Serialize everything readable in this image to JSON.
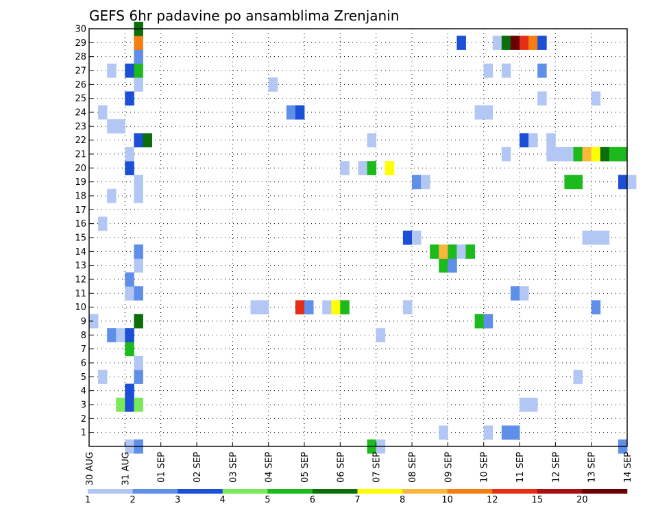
{
  "chart_data": {
    "type": "heatmap",
    "title": "GEFS 6hr padavine po ansamblima Zrenjanin",
    "x_tick_labels": [
      "30 AUG",
      "31 AUG",
      "01 SEP",
      "02 SEP",
      "03 SEP",
      "04 SEP",
      "05 SEP",
      "06 SEP",
      "07 SEP",
      "08 SEP",
      "09 SEP",
      "10 SEP",
      "11 SEP",
      "12 SEP",
      "13 SEP",
      "14 SEP"
    ],
    "x_range_steps": [
      0,
      60
    ],
    "y_ticks": [
      1,
      2,
      3,
      4,
      5,
      6,
      7,
      8,
      9,
      10,
      11,
      12,
      13,
      14,
      15,
      16,
      17,
      18,
      19,
      20,
      21,
      22,
      23,
      24,
      25,
      26,
      27,
      28,
      29,
      30
    ],
    "y_range": [
      0,
      30
    ],
    "grid": true,
    "legend_placement": "bottom",
    "legend_labels": [
      "1",
      "2",
      "3",
      "4",
      "5",
      "6",
      "7",
      "8",
      "10",
      "12",
      "15",
      "20"
    ],
    "legend_colors": [
      "#b3c7f5",
      "#5f8fe8",
      "#1a4fd6",
      "#7be85a",
      "#1dba1d",
      "#0b6e0b",
      "#ffff00",
      "#f9b83c",
      "#f57d12",
      "#e62d15",
      "#a51010",
      "#6b0000"
    ],
    "cells": [
      [
        4,
        0,
        1
      ],
      [
        5,
        0,
        2
      ],
      [
        31,
        0,
        5
      ],
      [
        32,
        0,
        1
      ],
      [
        59,
        0,
        2
      ],
      [
        39,
        1,
        1
      ],
      [
        44,
        1,
        1
      ],
      [
        46,
        1,
        2
      ],
      [
        47,
        1,
        2
      ],
      [
        3,
        3,
        4
      ],
      [
        4,
        3,
        3
      ],
      [
        5,
        3,
        4
      ],
      [
        48,
        3,
        1
      ],
      [
        49,
        3,
        1
      ],
      [
        4,
        4,
        3
      ],
      [
        1,
        5,
        1
      ],
      [
        5,
        5,
        2
      ],
      [
        54,
        5,
        1
      ],
      [
        5,
        6,
        1
      ],
      [
        4,
        7,
        5
      ],
      [
        2,
        8,
        2
      ],
      [
        3,
        8,
        1
      ],
      [
        4,
        8,
        3
      ],
      [
        32,
        8,
        1
      ],
      [
        0,
        9,
        1
      ],
      [
        5,
        9,
        6
      ],
      [
        43,
        9,
        5
      ],
      [
        44,
        9,
        2
      ],
      [
        18,
        10,
        1
      ],
      [
        19,
        10,
        1
      ],
      [
        23,
        10,
        10
      ],
      [
        24,
        10,
        2
      ],
      [
        26,
        10,
        1
      ],
      [
        27,
        10,
        7
      ],
      [
        28,
        10,
        5
      ],
      [
        35,
        10,
        1
      ],
      [
        56,
        10,
        2
      ],
      [
        4,
        11,
        1
      ],
      [
        5,
        11,
        2
      ],
      [
        47,
        11,
        2
      ],
      [
        48,
        11,
        1
      ],
      [
        4,
        12,
        2
      ],
      [
        5,
        13,
        1
      ],
      [
        39,
        13,
        5
      ],
      [
        40,
        13,
        2
      ],
      [
        5,
        14,
        2
      ],
      [
        38,
        14,
        5
      ],
      [
        39,
        14,
        8
      ],
      [
        40,
        14,
        5
      ],
      [
        41,
        14,
        1
      ],
      [
        42,
        14,
        5
      ],
      [
        35,
        15,
        3
      ],
      [
        36,
        15,
        1
      ],
      [
        55,
        15,
        1
      ],
      [
        56,
        15,
        1
      ],
      [
        57,
        15,
        1
      ],
      [
        1,
        16,
        1
      ],
      [
        2,
        18,
        1
      ],
      [
        5,
        18,
        1
      ],
      [
        5,
        19,
        1
      ],
      [
        36,
        19,
        2
      ],
      [
        37,
        19,
        1
      ],
      [
        53,
        19,
        5
      ],
      [
        54,
        19,
        5
      ],
      [
        59,
        19,
        3
      ],
      [
        60,
        19,
        1
      ],
      [
        4,
        20,
        3
      ],
      [
        28,
        20,
        1
      ],
      [
        30,
        20,
        1
      ],
      [
        31,
        20,
        5
      ],
      [
        33,
        20,
        7
      ],
      [
        4,
        21,
        1
      ],
      [
        46,
        21,
        1
      ],
      [
        51,
        21,
        1
      ],
      [
        52,
        21,
        1
      ],
      [
        53,
        21,
        1
      ],
      [
        54,
        21,
        5
      ],
      [
        55,
        21,
        8
      ],
      [
        56,
        21,
        7
      ],
      [
        57,
        21,
        6
      ],
      [
        58,
        21,
        5
      ],
      [
        59,
        21,
        5
      ],
      [
        5,
        22,
        3
      ],
      [
        6,
        22,
        6
      ],
      [
        31,
        22,
        1
      ],
      [
        48,
        22,
        3
      ],
      [
        49,
        22,
        1
      ],
      [
        51,
        22,
        1
      ],
      [
        2,
        23,
        1
      ],
      [
        3,
        23,
        1
      ],
      [
        1,
        24,
        1
      ],
      [
        22,
        24,
        2
      ],
      [
        23,
        24,
        3
      ],
      [
        43,
        24,
        1
      ],
      [
        44,
        24,
        1
      ],
      [
        4,
        25,
        3
      ],
      [
        50,
        25,
        1
      ],
      [
        56,
        25,
        1
      ],
      [
        5,
        26,
        1
      ],
      [
        20,
        26,
        1
      ],
      [
        2,
        27,
        1
      ],
      [
        4,
        27,
        3
      ],
      [
        5,
        27,
        5
      ],
      [
        44,
        27,
        1
      ],
      [
        46,
        27,
        1
      ],
      [
        50,
        27,
        2
      ],
      [
        5,
        28,
        2
      ],
      [
        5,
        29,
        9
      ],
      [
        41,
        29,
        3
      ],
      [
        45,
        29,
        1
      ],
      [
        46,
        29,
        6
      ],
      [
        47,
        29,
        12
      ],
      [
        48,
        29,
        10
      ],
      [
        49,
        29,
        9
      ],
      [
        50,
        29,
        3
      ],
      [
        5,
        30,
        6
      ]
    ]
  }
}
